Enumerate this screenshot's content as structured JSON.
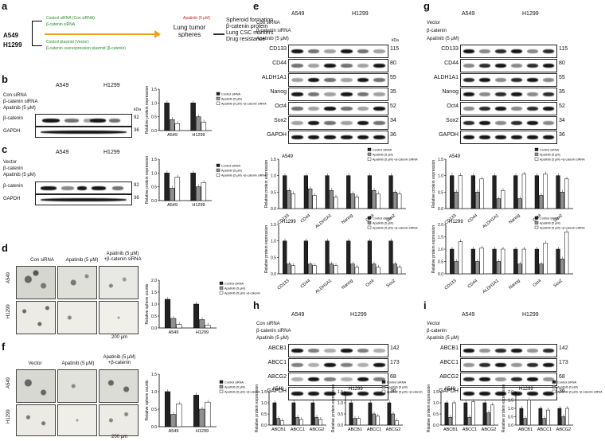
{
  "panels": {
    "a": {
      "letter": "a",
      "cells": [
        "A549",
        "H1299"
      ],
      "treatments": [
        "Control siRNA (Con siRNA)",
        "β-catenin siRNA",
        "Control plasmid (Vector)",
        "β-catenin overexpression plasmid (β-catenin)"
      ],
      "arrow_label": "Apatinib (5 μM)",
      "result": "Lung tumor spheres",
      "readouts": [
        "Spheroid formation",
        "β-catenin protein",
        "Lung CSC markers",
        "Drug resistance"
      ]
    },
    "b": {
      "letter": "b",
      "rows": [
        "Con siRNA",
        "β-catenin siRNA",
        "Apatinib (5 μM)"
      ],
      "blots": [
        "β-catenin",
        "GAPDH"
      ],
      "kda": [
        "92",
        "36"
      ]
    },
    "c": {
      "letter": "c",
      "rows": [
        "Vector",
        "β-catenin",
        "Apatinib (5 μM)"
      ],
      "blots": [
        "β-catenin",
        "GAPDH"
      ],
      "kda": [
        "92",
        "36"
      ]
    },
    "d": {
      "letter": "d",
      "cols": [
        "Con siRNA",
        "Apatinib (5 μM)",
        "Apatinib (5 μM)\n+β-catenin siRNA"
      ],
      "rows": [
        "A549",
        "H1299"
      ],
      "scale": "200 μm"
    },
    "e": {
      "letter": "e",
      "rows": [
        "Con siRNA",
        "β-catenin siRNA",
        "Apatinib (5 μM)"
      ],
      "blots": [
        "CD133",
        "CD44",
        "ALDH1A1",
        "Nanog",
        "Oct4",
        "Sox2",
        "GAPDH"
      ],
      "kda": [
        "115",
        "80",
        "55",
        "35",
        "52",
        "34",
        "36"
      ]
    },
    "f": {
      "letter": "f",
      "cols": [
        "Vector",
        "Apatinib (5 μM)",
        "Apatinib (5 μM)\n+β-catenin"
      ],
      "rows": [
        "A549",
        "H1299"
      ],
      "scale": "200 μm"
    },
    "g": {
      "letter": "g",
      "rows": [
        "Vector",
        "β-catenin",
        "Apatinib (5 μM)"
      ],
      "blots": [
        "CD133",
        "CD44",
        "ALDH1A1",
        "Nanog",
        "Oct4",
        "Sox2",
        "GAPDH"
      ],
      "kda": [
        "115",
        "80",
        "55",
        "35",
        "52",
        "34",
        "36"
      ]
    },
    "h": {
      "letter": "h",
      "rows": [
        "Con siRNA",
        "β-catenin siRNA",
        "Apatinib (5 μM)"
      ],
      "blots": [
        "ABCB1",
        "ABCC1",
        "ABCG2",
        "GAPDH"
      ],
      "kda": [
        "142",
        "173",
        "68",
        "36"
      ]
    },
    "i": {
      "letter": "i",
      "rows": [
        "Vector",
        "β-catenin",
        "Apatinib (5 μM)"
      ],
      "blots": [
        "ABCB1",
        "ABCC1",
        "ABCG2",
        "GAPDH"
      ],
      "kda": [
        "142",
        "173",
        "68",
        "36"
      ]
    }
  },
  "common": {
    "A549": "A549",
    "H1299": "H1299",
    "kda_label": "kDa",
    "plus": "+",
    "minus": "-"
  },
  "chart_data": [
    {
      "id": "b",
      "type": "bar",
      "categories": [
        "A549",
        "H1299"
      ],
      "series": [
        {
          "name": "Control siRNA",
          "values": [
            1.0,
            1.0
          ]
        },
        {
          "name": "Apatinib (5 μM)",
          "values": [
            0.4,
            0.5
          ]
        },
        {
          "name": "Apatinib (5 μM)\n+β-catenin siRNA",
          "values": [
            0.25,
            0.3
          ]
        }
      ],
      "ylabel": "Relative protein expression",
      "ylim": [
        0,
        1.5
      ],
      "yticks": [
        "0.0",
        "0.5",
        "1.0",
        "1.5"
      ]
    },
    {
      "id": "c",
      "type": "bar",
      "categories": [
        "A549",
        "H1299"
      ],
      "series": [
        {
          "name": "Control siRNA",
          "values": [
            1.0,
            1.0
          ]
        },
        {
          "name": "Apatinib (5 μM)",
          "values": [
            0.45,
            0.5
          ]
        },
        {
          "name": "Apatinib (5 μM)\n+β-catenin siRNA",
          "values": [
            0.85,
            0.65
          ]
        }
      ],
      "ylabel": "Relative protein expression",
      "ylim": [
        0,
        1.5
      ],
      "yticks": [
        "0.0",
        "0.5",
        "1.0",
        "1.5"
      ]
    },
    {
      "id": "d",
      "type": "bar",
      "categories": [
        "A549",
        "H1299"
      ],
      "series": [
        {
          "name": "Control siRNA",
          "values": [
            1.2,
            1.0
          ]
        },
        {
          "name": "Apatinib (5 μM)",
          "values": [
            0.4,
            0.35
          ]
        },
        {
          "name": "Apatinib (5 μM)\n+β-catenin",
          "values": [
            0.15,
            0.12
          ]
        }
      ],
      "ylabel": "Relative sphere counts",
      "ylim": [
        0,
        2.0
      ],
      "yticks": [
        "0.0",
        "0.5",
        "1.0",
        "1.5",
        "2.0"
      ]
    },
    {
      "id": "f",
      "type": "bar",
      "categories": [
        "A549",
        "H1299"
      ],
      "series": [
        {
          "name": "Control siRNA",
          "values": [
            1.0,
            0.9
          ]
        },
        {
          "name": "Apatinib (5 μM)",
          "values": [
            0.35,
            0.5
          ]
        },
        {
          "name": "Apatinib (5 μM)\n+β-catenin",
          "values": [
            0.65,
            0.7
          ]
        }
      ],
      "ylabel": "Relative sphere counts",
      "ylim": [
        0,
        1.5
      ],
      "yticks": [
        "0.0",
        "0.5",
        "1.0",
        "1.5"
      ]
    },
    {
      "id": "e1",
      "type": "bar",
      "title": "A549",
      "categories": [
        "CD133",
        "CD44",
        "ALDH1A1",
        "Nanog",
        "Oct4",
        "Sox2"
      ],
      "series": [
        {
          "name": "Control siRNA",
          "values": [
            1.0,
            1.0,
            1.0,
            1.0,
            1.0,
            1.0
          ]
        },
        {
          "name": "Apatinib (5 μM)",
          "values": [
            0.55,
            0.6,
            0.55,
            0.45,
            0.55,
            0.5
          ]
        },
        {
          "name": "Apatinib (5 μM)\n+β-catenin siRNA",
          "values": [
            0.45,
            0.4,
            0.35,
            0.35,
            0.45,
            0.45
          ]
        }
      ],
      "ylabel": "Relative protein expression",
      "ylim": [
        0,
        1.5
      ],
      "yticks": [
        "0.0",
        "0.5",
        "1.0",
        "1.5"
      ]
    },
    {
      "id": "e2",
      "type": "bar",
      "title": "H1299",
      "categories": [
        "CD133",
        "CD44",
        "ALDH1A1",
        "Nanog",
        "Oct4",
        "Sox2"
      ],
      "series": [
        {
          "name": "Control siRNA",
          "values": [
            1.0,
            1.0,
            1.0,
            1.0,
            1.0,
            1.0
          ]
        },
        {
          "name": "Apatinib (5 μM)",
          "values": [
            0.3,
            0.3,
            0.3,
            0.3,
            0.3,
            0.3
          ]
        },
        {
          "name": "Apatinib (5 μM)\n+β-catenin siRNA",
          "values": [
            0.25,
            0.25,
            0.25,
            0.2,
            0.2,
            0.2
          ]
        }
      ],
      "xlabels": [
        "CD133",
        "CD44",
        "ALDH1A1",
        "Nanog",
        "Oct4",
        "Sox2"
      ],
      "ylabel": "Relative protein expression",
      "ylim": [
        0,
        1.5
      ],
      "yticks": [
        "0.0",
        "0.5",
        "1.0",
        "1.5"
      ]
    },
    {
      "id": "g1",
      "type": "bar",
      "title": "A549",
      "categories": [
        "CD133",
        "CD44",
        "ALDH1A1",
        "Nanog",
        "Oct4",
        "Sox2"
      ],
      "series": [
        {
          "name": "Control siRNA",
          "values": [
            1.0,
            1.0,
            1.0,
            1.0,
            1.0,
            1.0
          ]
        },
        {
          "name": "Apatinib (5 μM)",
          "values": [
            0.5,
            0.5,
            0.3,
            0.3,
            0.4,
            0.5
          ]
        },
        {
          "name": "Apatinib (5 μM)\n+β-catenin siRNA",
          "values": [
            1.0,
            0.9,
            0.55,
            1.05,
            1.05,
            0.9
          ]
        }
      ],
      "ylabel": "Relative protein expression",
      "ylim": [
        0,
        1.5
      ],
      "yticks": [
        "0.0",
        "0.5",
        "1.0",
        "1.5"
      ]
    },
    {
      "id": "g2",
      "type": "bar",
      "title": "H1299",
      "categories": [
        "CD133",
        "CD44",
        "ALDH1A1",
        "Nanog",
        "Oct4",
        "Sox2"
      ],
      "series": [
        {
          "name": "Control siRNA",
          "values": [
            1.0,
            1.0,
            1.0,
            1.0,
            1.0,
            1.0
          ]
        },
        {
          "name": "Apatinib (5 μM)",
          "values": [
            0.5,
            0.5,
            0.5,
            0.4,
            0.4,
            0.6
          ]
        },
        {
          "name": "Apatinib (5 μM)\n+β-catenin siRNA",
          "values": [
            1.3,
            1.05,
            1.0,
            1.0,
            1.25,
            1.7
          ]
        }
      ],
      "ylabel": "Relative protein expression",
      "ylim": [
        0,
        2.0
      ],
      "yticks": [
        "0.0",
        "0.5",
        "1.0",
        "1.5",
        "2.0"
      ]
    },
    {
      "id": "h1",
      "type": "bar",
      "title": "A549",
      "categories": [
        "ABCB1",
        "ABCC1",
        "ABCG2"
      ],
      "series": [
        {
          "name": "Control siRNA",
          "values": [
            1.0,
            1.0,
            1.0
          ]
        },
        {
          "name": "Apatinib (5 μM)",
          "values": [
            0.3,
            0.35,
            0.35
          ]
        },
        {
          "name": "Apatinib (5 μM)\n+β-catenin",
          "values": [
            0.2,
            0.25,
            0.25
          ]
        }
      ],
      "ylabel": "Relative protein expression",
      "ylim": [
        0,
        1.5
      ],
      "yticks": [
        "0.0",
        "0.5",
        "1.0",
        "1.5"
      ]
    },
    {
      "id": "h2",
      "type": "bar",
      "title": "H1299",
      "categories": [
        "ABCB1",
        "ABCC1",
        "ABCG2"
      ],
      "series": [
        {
          "name": "Control siRNA",
          "values": [
            1.0,
            1.0,
            1.0
          ]
        },
        {
          "name": "Apatinib (5 μM)",
          "values": [
            0.3,
            0.5,
            0.5
          ]
        },
        {
          "name": "Apatinib (5 μM)\n+β-catenin",
          "values": [
            0.3,
            0.4,
            0.2
          ]
        }
      ],
      "ylabel": "Relative protein expression",
      "ylim": [
        0,
        1.5
      ],
      "yticks": [
        "0.0",
        "0.5",
        "1.0",
        "1.5"
      ]
    },
    {
      "id": "i1",
      "type": "bar",
      "title": "A549",
      "categories": [
        "ABCB1",
        "ABCC1",
        "ABCG2"
      ],
      "series": [
        {
          "name": "Control siRNA",
          "values": [
            1.0,
            1.0,
            1.0
          ]
        },
        {
          "name": "Apatinib (5 μM)",
          "values": [
            0.35,
            0.35,
            0.55
          ]
        },
        {
          "name": "Apatinib (5 μM)\n+β-catenin siRNA",
          "values": [
            1.0,
            1.05,
            0.9
          ]
        }
      ],
      "ylabel": "Relative protein expression",
      "ylim": [
        0,
        1.5
      ],
      "yticks": [
        "0.0",
        "0.5",
        "1.0",
        "1.5"
      ]
    },
    {
      "id": "i2",
      "type": "bar",
      "title": "H1299",
      "categories": [
        "ABCB1",
        "ABCC1",
        "ABCG2"
      ],
      "series": [
        {
          "name": "Control siRNA",
          "values": [
            1.0,
            1.0,
            1.0
          ]
        },
        {
          "name": "Apatinib (5 μM)",
          "values": [
            0.4,
            0.4,
            0.5
          ]
        },
        {
          "name": "Apatinib (5 μM)\n+β-catenin siRNA",
          "values": [
            1.5,
            0.9,
            1.0
          ]
        }
      ],
      "ylabel": "Relative protein expression",
      "ylim": [
        0,
        2.0
      ],
      "yticks": [
        "0.0",
        "0.5",
        "1.0",
        "1.5",
        "2.0"
      ]
    }
  ],
  "colors": {
    "s0": "#222222",
    "s1": "#909090",
    "s2": "#ffffff"
  }
}
